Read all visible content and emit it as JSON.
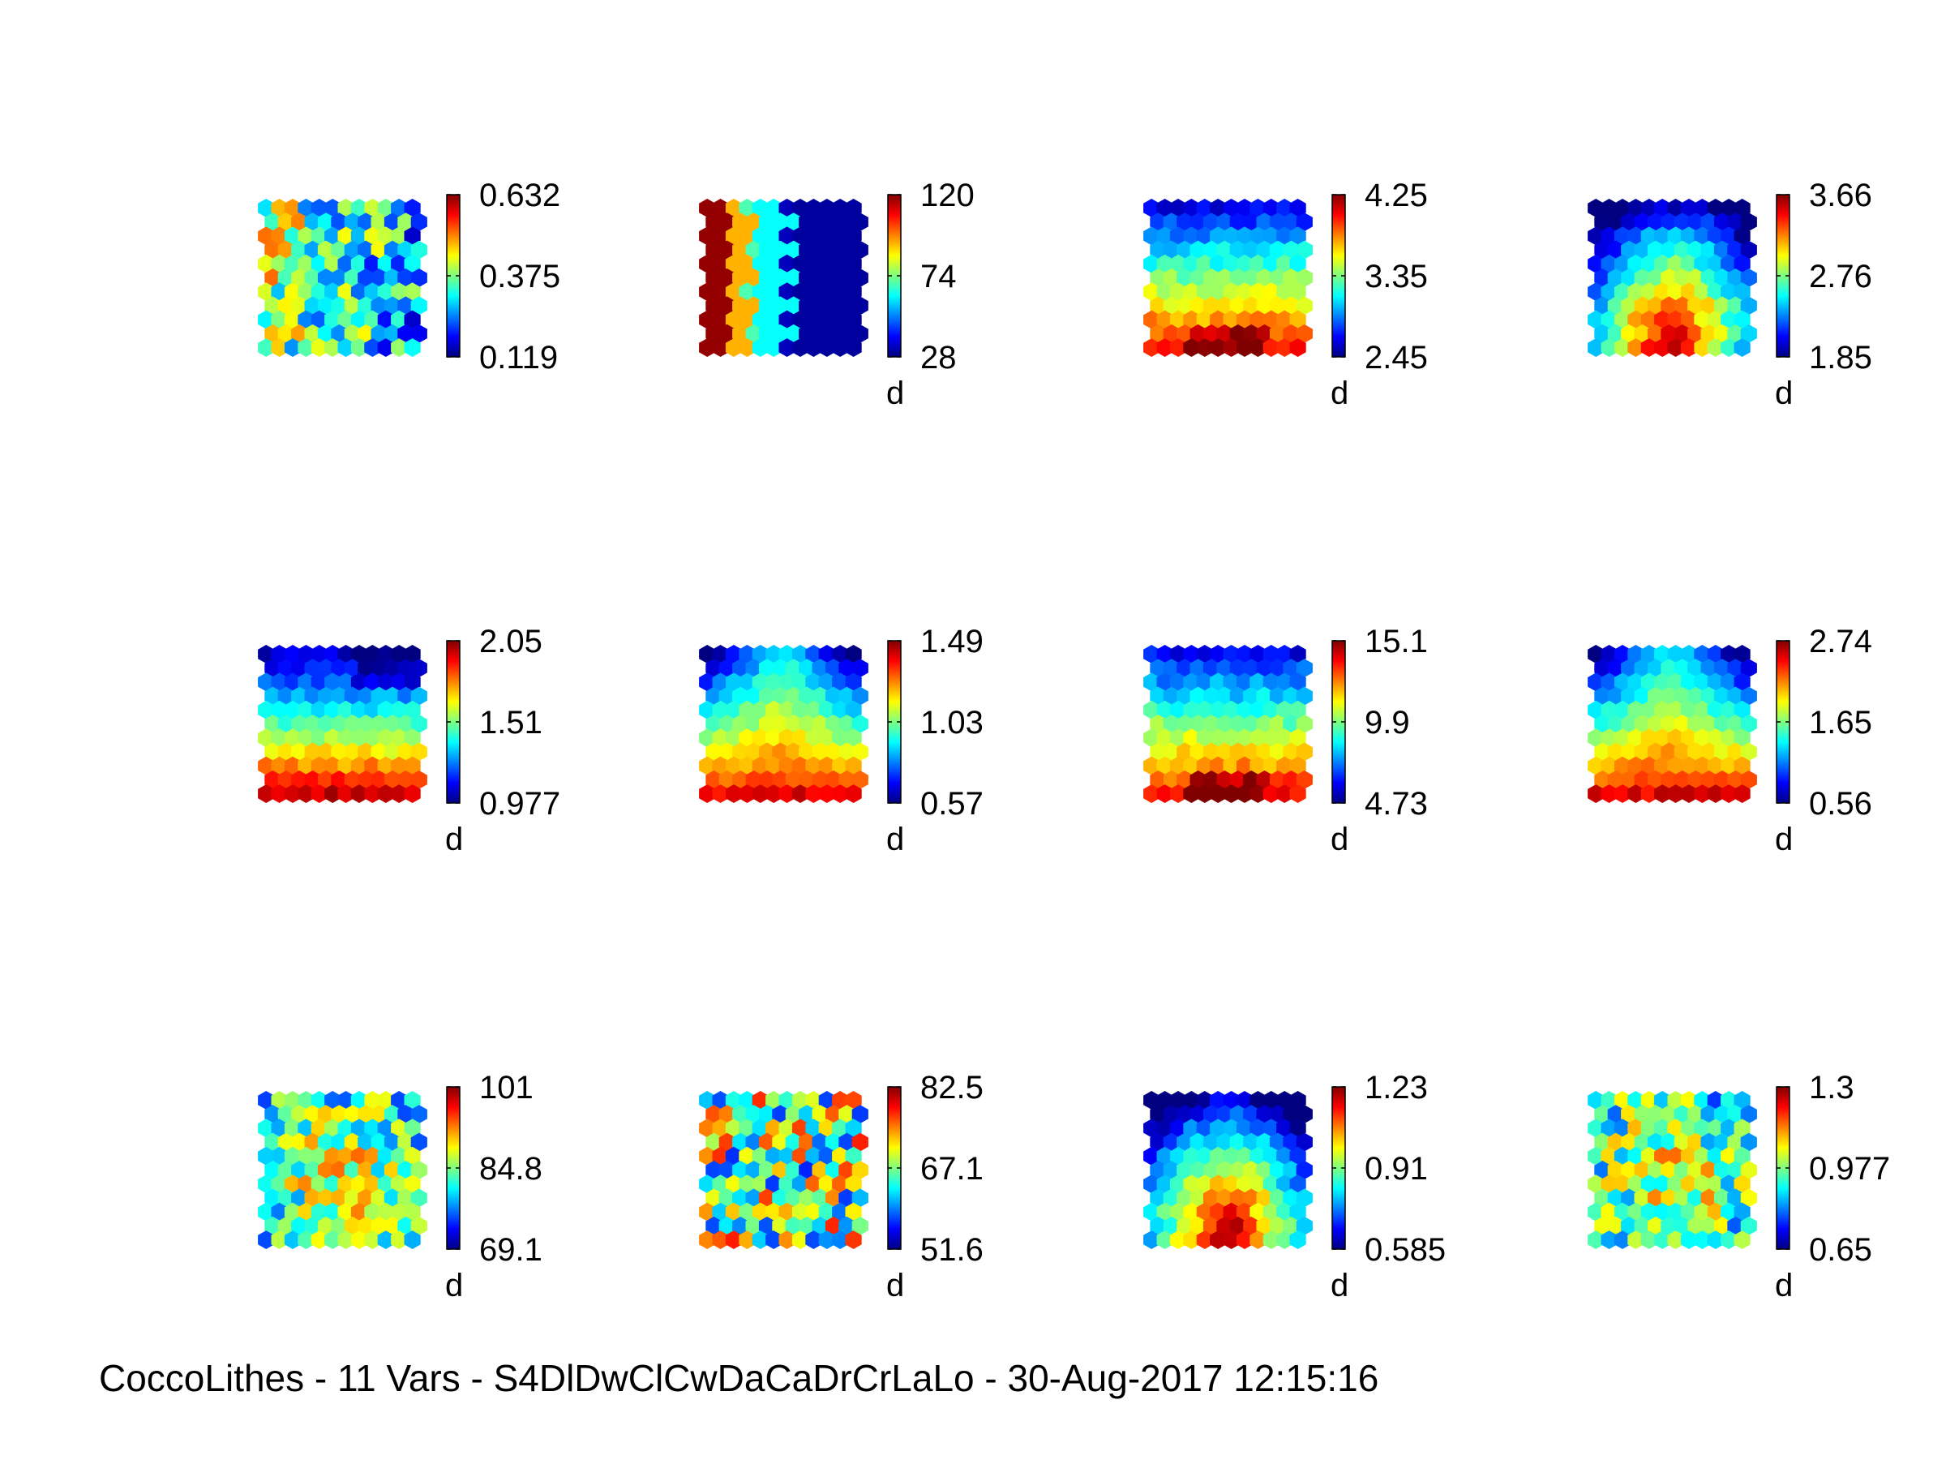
{
  "caption": "CoccoLithes - 11 Vars - S4DlDwClCwDaCaDrCrLaLo - 30-Aug-2017 12:15:16",
  "chart_data": [
    {
      "type": "heatmap",
      "pattern": "noise_right_low",
      "cmin": 0.119,
      "cmax": 0.632,
      "ticks": [
        "0.632",
        "0.375",
        "0.119"
      ],
      "unit": ""
    },
    {
      "type": "heatmap",
      "pattern": "bands",
      "cmin": 28,
      "cmax": 120,
      "ticks": [
        "120",
        "74",
        "28"
      ],
      "unit": "d"
    },
    {
      "type": "heatmap",
      "pattern": "bottom_high",
      "cmin": 2.45,
      "cmax": 4.25,
      "ticks": [
        "4.25",
        "3.35",
        "2.45"
      ],
      "unit": "d"
    },
    {
      "type": "heatmap",
      "pattern": "bottom_center",
      "cmin": 1.85,
      "cmax": 3.66,
      "ticks": [
        "3.66",
        "2.76",
        "1.85"
      ],
      "unit": "d"
    },
    {
      "type": "heatmap",
      "pattern": "top_low_bottom_high",
      "cmin": 0.977,
      "cmax": 2.05,
      "ticks": [
        "2.05",
        "1.51",
        "0.977"
      ],
      "unit": "d"
    },
    {
      "type": "heatmap",
      "pattern": "v_shape",
      "cmin": 0.57,
      "cmax": 1.49,
      "ticks": [
        "1.49",
        "1.03",
        "0.57"
      ],
      "unit": "d"
    },
    {
      "type": "heatmap",
      "pattern": "bottom_high",
      "cmin": 4.73,
      "cmax": 15.1,
      "ticks": [
        "15.1",
        "9.9",
        "4.73"
      ],
      "unit": "d"
    },
    {
      "type": "heatmap",
      "pattern": "v_shape",
      "cmin": 0.56,
      "cmax": 2.74,
      "ticks": [
        "2.74",
        "1.65",
        "0.56"
      ],
      "unit": "d"
    },
    {
      "type": "heatmap",
      "pattern": "noise_center_high",
      "cmin": 69.1,
      "cmax": 101,
      "ticks": [
        "101",
        "84.8",
        "69.1"
      ],
      "unit": "d"
    },
    {
      "type": "heatmap",
      "pattern": "noise",
      "cmin": 51.6,
      "cmax": 82.5,
      "ticks": [
        "82.5",
        "67.1",
        "51.6"
      ],
      "unit": "d"
    },
    {
      "type": "heatmap",
      "pattern": "bottom_center",
      "cmin": 0.585,
      "cmax": 1.23,
      "ticks": [
        "1.23",
        "0.91",
        "0.585"
      ],
      "unit": "d"
    },
    {
      "type": "heatmap",
      "pattern": "noise_center_high",
      "cmin": 0.65,
      "cmax": 1.3,
      "ticks": [
        "1.3",
        "0.977",
        "0.65"
      ],
      "unit": "d"
    }
  ]
}
